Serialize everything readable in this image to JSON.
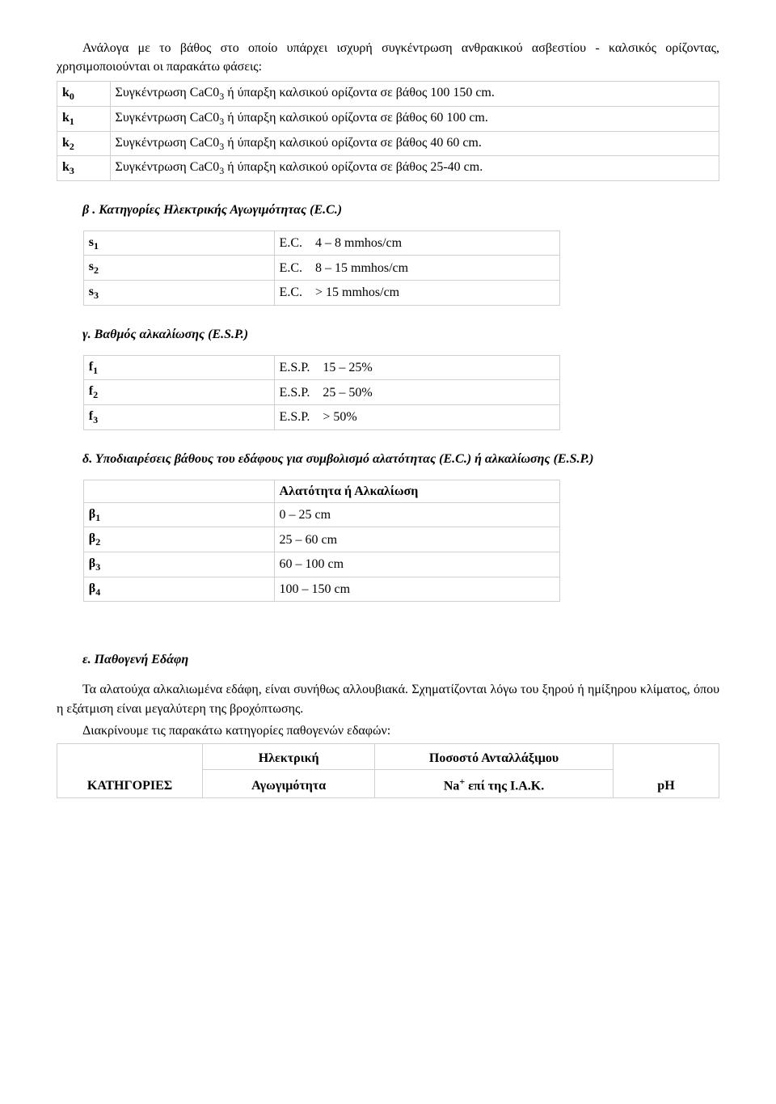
{
  "intro1": "Ανάλογα με το βάθος στο οποίο υπάρχει ισχυρή συγκέντρωση ανθρακικού ασβεστίου - καλσικός ορίζοντας, χρησιμοποιούνται οι παρακάτω φάσεις:",
  "k_table": {
    "rows": [
      {
        "label_html": "k<sub>0</sub>",
        "text_html": "Συγκέντρωση CaC0<sub>3</sub> ή ύπαρξη καλσικού ορίζοντα σε βάθος 100 150 cm."
      },
      {
        "label_html": "k<sub>1</sub>",
        "text_html": "Συγκέντρωση CaC0<sub>3</sub> ή ύπαρξη καλσικού ορίζοντα σε βάθος 60 100 cm."
      },
      {
        "label_html": "k<sub>2</sub>",
        "text_html": "Συγκέντρωση CaC0<sub>3</sub> ή ύπαρξη καλσικού ορίζοντα σε βάθος 40 60 cm."
      },
      {
        "label_html": "k<sub>3</sub>",
        "text_html": "Συγκέντρωση CaC0<sub>3</sub> ή ύπαρξη καλσικού ορίζοντα σε βάθος 25-40 cm."
      }
    ]
  },
  "heading_b": "β . Κατηγορίες Ηλεκτρικής Αγωγιμότητας (E.C.)",
  "s_table": {
    "rows": [
      {
        "label_html": "s<sub>1</sub>",
        "value": "E.C.    4 – 8 mmhos/cm"
      },
      {
        "label_html": "s<sub>2</sub>",
        "value": "E.C.    8 – 15 mmhos/cm"
      },
      {
        "label_html": "s<sub>3</sub>",
        "value": "E.C.    > 15 mmhos/cm"
      }
    ]
  },
  "heading_c": "γ. Βαθμός αλκαλίωσης (E.S.P.)",
  "f_table": {
    "rows": [
      {
        "label_html": "f<sub>1</sub>",
        "value": "E.S.P.    15 – 25%"
      },
      {
        "label_html": "f<sub>2</sub>",
        "value": "E.S.P.    25 – 50%"
      },
      {
        "label_html": "f<sub>3</sub>",
        "value": "E.S.P.    > 50%"
      }
    ]
  },
  "heading_d": "δ. Υποδιαιρέσεις βάθους του εδάφους για συμβολισμό αλατότητας (E.C.) ή αλκαλίωσης (E.S.P.)",
  "beta_table": {
    "header": "Αλατότητα ή Αλκαλίωση",
    "rows": [
      {
        "label_html": "β<sub>1</sub>",
        "value": "0 – 25 cm"
      },
      {
        "label_html": "β<sub>2</sub>",
        "value": "25 – 60 cm"
      },
      {
        "label_html": "β<sub>3</sub>",
        "value": "60 – 100 cm"
      },
      {
        "label_html": "β<sub>4</sub>",
        "value": "100 – 150 cm"
      }
    ]
  },
  "heading_e": "ε. Παθογενή Εδάφη",
  "e_para1": "Τα αλατούχα αλκαλιωμένα εδάφη, είναι συνήθως αλλουβιακά. Σχηματίζονται λόγω του ξηρού ή ημίξηρου κλίματος, όπου η εξάτμιση είναι μεγαλύτερη της βροχόπτωσης.",
  "e_para2": "Διακρίνουμε τις παρακάτω κατηγορίες παθογενών εδαφών:",
  "bottom_table": {
    "col1": "ΚΑΤΗΓΟΡΙΕΣ",
    "col2_l1": "Ηλεκτρική",
    "col2_l2": "Αγωγιμότητα",
    "col3_l1": "Ποσοστό Ανταλλάξιμου",
    "col3_l2_html": "Na<sup>+</sup> επί της Ι.Α.Κ.",
    "col4": "pH"
  }
}
